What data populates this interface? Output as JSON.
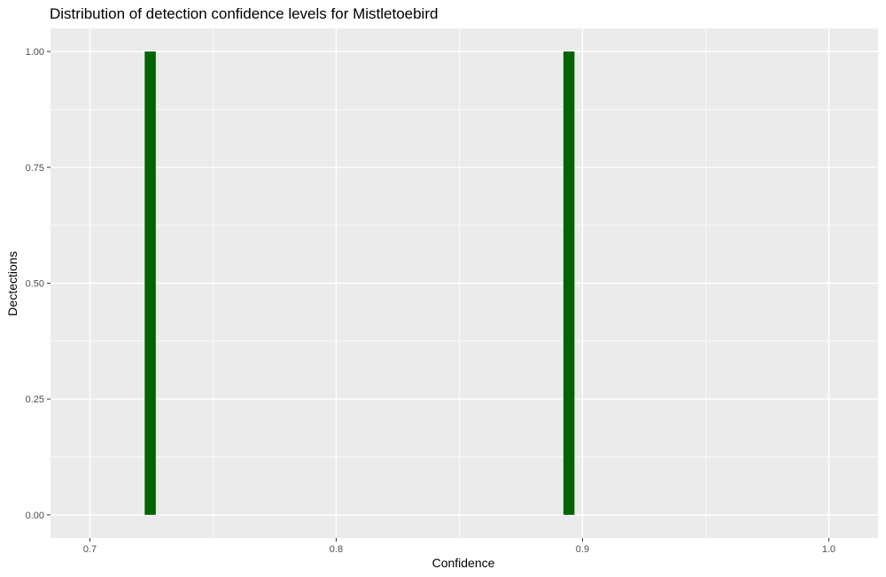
{
  "chart_data": {
    "type": "bar",
    "title": "Distribution of detection confidence levels for Mistletoebird",
    "xlabel": "Confidence",
    "ylabel": "Dectections",
    "xlim": [
      0.684,
      1.02
    ],
    "ylim": [
      -0.05,
      1.05
    ],
    "x_ticks": [
      0.7,
      0.8,
      0.9,
      1.0
    ],
    "x_tick_labels": [
      "0.7",
      "0.8",
      "0.9",
      "1.0"
    ],
    "y_ticks": [
      0,
      0.25,
      0.5,
      0.75,
      1.0
    ],
    "y_tick_labels": [
      "0.00",
      "0.25",
      "0.50",
      "0.75",
      "1.00"
    ],
    "bin_width": 0.0045,
    "bars": [
      {
        "x": 0.7245,
        "value": 1
      },
      {
        "x": 0.8945,
        "value": 1
      }
    ],
    "grid": true,
    "colors": {
      "bar": "#006400",
      "panel": "#ebebeb",
      "grid": "#ffffff"
    }
  }
}
